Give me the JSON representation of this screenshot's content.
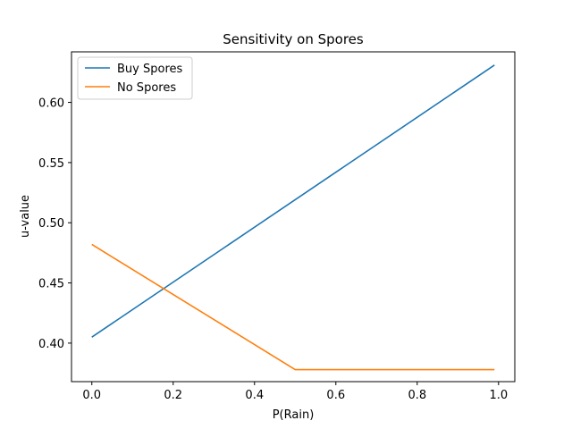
{
  "chart_data": {
    "type": "line",
    "title": "Sensitivity on Spores",
    "xlabel": "P(Rain)",
    "ylabel": "u-value",
    "xlim": [
      -0.05,
      1.04
    ],
    "ylim": [
      0.368,
      0.642
    ],
    "xticks": [
      "0.0",
      "0.2",
      "0.4",
      "0.6",
      "0.8",
      "1.0"
    ],
    "yticks": [
      "0.40",
      "0.45",
      "0.50",
      "0.55",
      "0.60"
    ],
    "grid": false,
    "legend_position": "upper-left",
    "series": [
      {
        "name": "Buy Spores",
        "color": "#1f77b4",
        "x": [
          0.0,
          0.99
        ],
        "y": [
          0.405,
          0.631
        ]
      },
      {
        "name": "No Spores",
        "color": "#ff7f0e",
        "x": [
          0.0,
          0.5,
          0.99
        ],
        "y": [
          0.482,
          0.378,
          0.378
        ]
      }
    ]
  }
}
